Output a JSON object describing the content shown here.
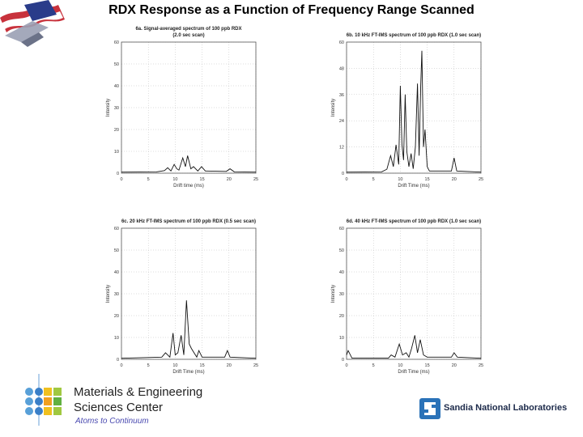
{
  "slide": {
    "title": "RDX Response as a Function of Frequency Range Scanned"
  },
  "chart_data": [
    {
      "type": "line",
      "title": "6a. Signal-averaged spectrum of 100 ppb RDX",
      "subtitle": "(2.0 sec scan)",
      "xlabel": "Drift time (ms)",
      "ylabel": "Intensity",
      "xlim": [
        0,
        25
      ],
      "ylim": [
        0,
        60
      ],
      "xticks": [
        0,
        5,
        10,
        15,
        20,
        25
      ],
      "yticks": [
        0,
        10,
        20,
        30,
        40,
        50,
        60
      ],
      "grid": true,
      "x": [
        0,
        6.5,
        8,
        8.6,
        9.2,
        9.8,
        10.3,
        10.7,
        11.4,
        11.9,
        12.3,
        12.9,
        13.4,
        14.2,
        14.9,
        15.6,
        19.5,
        20.2,
        21,
        25
      ],
      "y": [
        0.5,
        0.6,
        1.2,
        2.5,
        1,
        4,
        2,
        1.4,
        7,
        3,
        8,
        2,
        3,
        1,
        3,
        1,
        0.8,
        2,
        0.6,
        0.5
      ]
    },
    {
      "type": "line",
      "title": "6b. 10 kHz FT-IMS spectrum of 100 ppb RDX (1.0 sec scan)",
      "xlabel": "Drift Time (ms)",
      "ylabel": "Intensity",
      "xlim": [
        0,
        25
      ],
      "ylim": [
        0,
        60
      ],
      "xticks": [
        0,
        5,
        10,
        15,
        20,
        25
      ],
      "yticks": [
        0,
        12,
        24,
        36,
        48,
        60
      ],
      "grid": true,
      "x": [
        0,
        6.5,
        7.5,
        8.2,
        8.7,
        9.2,
        9.7,
        10.0,
        10.3,
        10.6,
        10.9,
        11.2,
        11.6,
        12.0,
        12.4,
        12.8,
        13.2,
        13.5,
        13.8,
        14.0,
        14.3,
        14.6,
        15.0,
        15.4,
        19.5,
        20.0,
        20.5,
        25
      ],
      "y": [
        0.5,
        0.6,
        1.8,
        8,
        3,
        13,
        4,
        40,
        13,
        6,
        36,
        10,
        3,
        9,
        2,
        12,
        41,
        8,
        40,
        56,
        12,
        20,
        3,
        1,
        1,
        7,
        1,
        0.5
      ]
    },
    {
      "type": "line",
      "title": "6c. 20 kHz FT-IMS spectrum of 100 ppb RDX (0.5 sec scan)",
      "xlabel": "Drift Time (ms)",
      "ylabel": "Intensity",
      "xlim": [
        0,
        25
      ],
      "ylim": [
        0,
        60
      ],
      "xticks": [
        0,
        5,
        10,
        15,
        20,
        25
      ],
      "yticks": [
        0,
        10,
        20,
        30,
        40,
        50,
        60
      ],
      "grid": true,
      "x": [
        0,
        7.5,
        8.2,
        9,
        9.6,
        10.0,
        10.5,
        11.1,
        11.6,
        12.1,
        12.6,
        13.0,
        13.5,
        14.0,
        14.4,
        15.0,
        19.2,
        19.7,
        20.2,
        25
      ],
      "y": [
        0.5,
        1,
        3,
        1,
        12,
        2,
        3,
        11,
        2,
        27,
        7,
        5,
        3,
        1,
        4,
        1,
        1,
        4,
        1,
        0.5
      ]
    },
    {
      "type": "line",
      "title": "6d. 40 kHz FT-IMS spectrum of 100 ppb RDX (1.0 sec scan)",
      "xlabel": "Drift Time (ms)",
      "ylabel": "Intensity",
      "xlim": [
        0,
        25
      ],
      "ylim": [
        0,
        60
      ],
      "xticks": [
        0,
        5,
        10,
        15,
        20,
        25
      ],
      "yticks": [
        0,
        10,
        20,
        30,
        40,
        50,
        60
      ],
      "grid": true,
      "x": [
        0,
        0.3,
        1.0,
        7.8,
        8.3,
        9,
        9.8,
        10.4,
        11.1,
        11.6,
        12.1,
        12.7,
        13.2,
        13.7,
        14.3,
        15.0,
        19.5,
        20.0,
        20.6,
        25
      ],
      "y": [
        2,
        4,
        0.6,
        0.6,
        2,
        1,
        7,
        2,
        3,
        1,
        5,
        11,
        3,
        9,
        2,
        1,
        1,
        3,
        1,
        0.5
      ]
    }
  ],
  "footer": {
    "org_line1": "Materials & Engineering",
    "org_line2": "Sciences Center",
    "tagline": "Atoms to Continuum",
    "lab_name": "Sandia National Laboratories"
  }
}
